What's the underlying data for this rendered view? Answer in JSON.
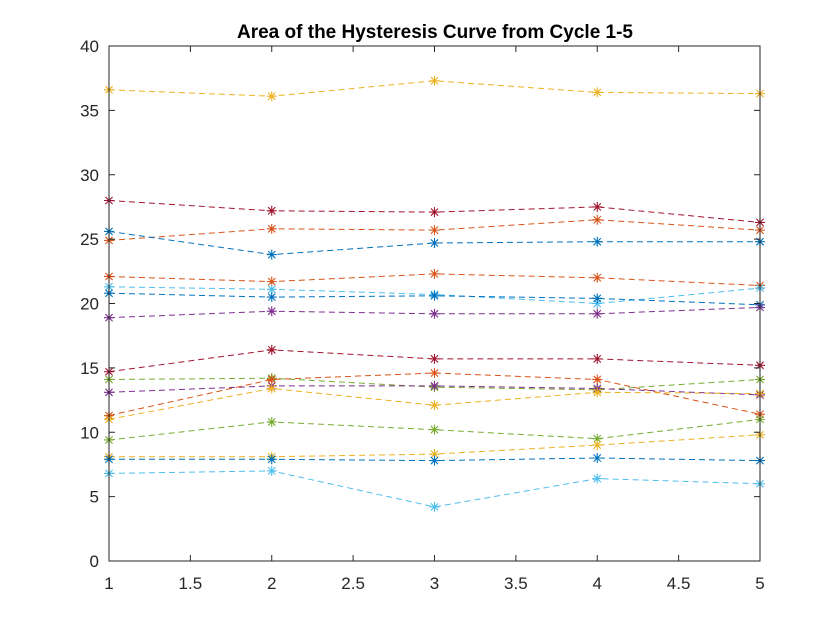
{
  "chart_data": {
    "type": "line",
    "title": "Area of the Hysteresis Curve from Cycle 1-5",
    "xlabel": "",
    "ylabel": "",
    "xlim": [
      1,
      5
    ],
    "ylim": [
      0,
      40
    ],
    "xticks": [
      1,
      1.5,
      2,
      2.5,
      3,
      3.5,
      4,
      4.5,
      5
    ],
    "xtick_labels": [
      "1",
      "1.5",
      "2",
      "2.5",
      "3",
      "3.5",
      "4",
      "4.5",
      "5"
    ],
    "yticks": [
      0,
      5,
      10,
      15,
      20,
      25,
      30,
      35,
      40
    ],
    "ytick_labels": [
      "0",
      "5",
      "10",
      "15",
      "20",
      "25",
      "30",
      "35",
      "40"
    ],
    "grid": false,
    "line_style": "dashed",
    "marker": "asterisk",
    "x": [
      1,
      2,
      3,
      4,
      5
    ],
    "series": [
      {
        "color": "#EDB120",
        "values": [
          36.6,
          36.1,
          37.3,
          36.4,
          36.3
        ]
      },
      {
        "color": "#A2142F",
        "values": [
          28.0,
          27.2,
          27.1,
          27.5,
          26.3
        ]
      },
      {
        "color": "#D95319",
        "values": [
          24.9,
          25.8,
          25.7,
          26.5,
          25.7
        ]
      },
      {
        "color": "#0072BD",
        "values": [
          25.6,
          23.8,
          24.7,
          24.8,
          24.8
        ]
      },
      {
        "color": "#D95319",
        "values": [
          22.1,
          21.7,
          22.3,
          22.0,
          21.4
        ]
      },
      {
        "color": "#4DBEEE",
        "values": [
          21.3,
          21.1,
          20.7,
          20.0,
          21.2
        ]
      },
      {
        "color": "#0072BD",
        "values": [
          20.8,
          20.5,
          20.6,
          20.4,
          19.9
        ]
      },
      {
        "color": "#7E2F8E",
        "values": [
          18.9,
          19.4,
          19.2,
          19.2,
          19.7
        ]
      },
      {
        "color": "#A2142F",
        "values": [
          14.7,
          16.4,
          15.7,
          15.7,
          15.2
        ]
      },
      {
        "color": "#77AC30",
        "values": [
          14.1,
          14.2,
          13.5,
          13.3,
          14.1
        ]
      },
      {
        "color": "#7E2F8E",
        "values": [
          13.1,
          13.6,
          13.6,
          13.4,
          12.9
        ]
      },
      {
        "color": "#D95319",
        "values": [
          11.3,
          14.1,
          14.6,
          14.1,
          11.4
        ]
      },
      {
        "color": "#EDB120",
        "values": [
          11.0,
          13.4,
          12.1,
          13.1,
          13.0
        ]
      },
      {
        "color": "#77AC30",
        "values": [
          9.4,
          10.8,
          10.2,
          9.5,
          11.0
        ]
      },
      {
        "color": "#EDB120",
        "values": [
          8.1,
          8.1,
          8.3,
          9.0,
          9.8
        ]
      },
      {
        "color": "#0072BD",
        "values": [
          7.9,
          7.9,
          7.8,
          8.0,
          7.8
        ]
      },
      {
        "color": "#4DBEEE",
        "values": [
          6.8,
          7.0,
          4.2,
          6.4,
          6.0
        ]
      }
    ]
  }
}
